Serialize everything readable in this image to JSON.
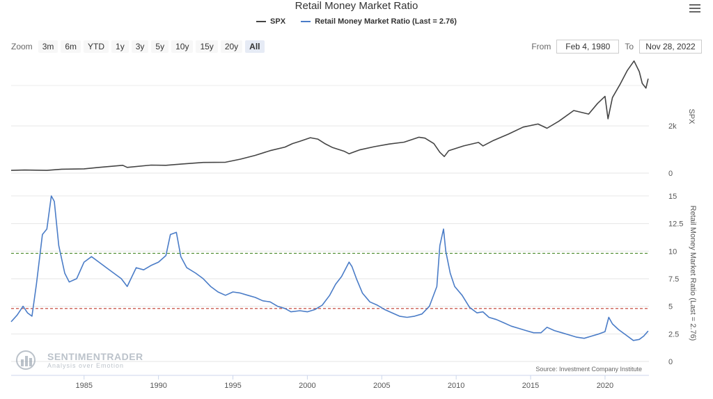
{
  "title": "Retail Money Market Ratio",
  "legend": {
    "spx_label": "SPX",
    "ratio_label": "Retail Money Market Ratio (Last = 2.76)",
    "spx_color": "#444444",
    "ratio_color": "#4a7cc7"
  },
  "zoom": {
    "label": "Zoom",
    "buttons": [
      "3m",
      "6m",
      "YTD",
      "1y",
      "3y",
      "5y",
      "10y",
      "15y",
      "20y",
      "All"
    ],
    "active": "All"
  },
  "range": {
    "from_label": "From",
    "from_value": "Feb 4, 1980",
    "to_label": "To",
    "to_value": "Nov 28, 2022"
  },
  "watermark": {
    "brand": "SENTIMENTRADER",
    "tagline": "Analysis over Emotion"
  },
  "source": "Source: Investment Company Institute",
  "icons": {
    "menu": "hamburger-menu-icon"
  },
  "chart_data": [
    {
      "type": "line",
      "series": [
        {
          "name": "SPX",
          "color": "#444444",
          "points": [
            [
              1980.1,
              115
            ],
            [
              1981.0,
              130
            ],
            [
              1982.5,
              115
            ],
            [
              1983.5,
              165
            ],
            [
              1985.0,
              180
            ],
            [
              1986.0,
              240
            ],
            [
              1987.6,
              330
            ],
            [
              1987.9,
              240
            ],
            [
              1989.5,
              340
            ],
            [
              1990.5,
              330
            ],
            [
              1991.5,
              380
            ],
            [
              1993.0,
              450
            ],
            [
              1994.5,
              460
            ],
            [
              1995.5,
              590
            ],
            [
              1996.5,
              750
            ],
            [
              1997.5,
              950
            ],
            [
              1998.5,
              1100
            ],
            [
              1999.0,
              1250
            ],
            [
              1999.5,
              1350
            ],
            [
              2000.2,
              1500
            ],
            [
              2000.7,
              1440
            ],
            [
              2001.2,
              1240
            ],
            [
              2001.7,
              1080
            ],
            [
              2002.5,
              920
            ],
            [
              2002.8,
              820
            ],
            [
              2003.5,
              980
            ],
            [
              2004.5,
              1120
            ],
            [
              2005.5,
              1230
            ],
            [
              2006.5,
              1310
            ],
            [
              2007.5,
              1520
            ],
            [
              2007.9,
              1480
            ],
            [
              2008.5,
              1250
            ],
            [
              2008.9,
              880
            ],
            [
              2009.2,
              700
            ],
            [
              2009.5,
              950
            ],
            [
              2010.5,
              1150
            ],
            [
              2011.5,
              1300
            ],
            [
              2011.8,
              1150
            ],
            [
              2012.5,
              1380
            ],
            [
              2013.5,
              1650
            ],
            [
              2014.5,
              1950
            ],
            [
              2015.5,
              2080
            ],
            [
              2016.1,
              1900
            ],
            [
              2016.9,
              2200
            ],
            [
              2017.9,
              2650
            ],
            [
              2018.9,
              2500
            ],
            [
              2019.5,
              2950
            ],
            [
              2020.0,
              3250
            ],
            [
              2020.2,
              2300
            ],
            [
              2020.5,
              3200
            ],
            [
              2021.0,
              3750
            ],
            [
              2021.5,
              4350
            ],
            [
              2021.95,
              4750
            ],
            [
              2022.3,
              4300
            ],
            [
              2022.5,
              3800
            ],
            [
              2022.75,
              3600
            ],
            [
              2022.9,
              4000
            ]
          ]
        }
      ],
      "yticks": [
        0,
        2000
      ],
      "ytick_labels": [
        "0",
        "2k"
      ],
      "ylabel": "SPX",
      "ylim": [
        0,
        4800
      ],
      "grid": true
    },
    {
      "type": "line",
      "series": [
        {
          "name": "Retail Money Market Ratio (Last = 2.76)",
          "color": "#4a7cc7",
          "points": [
            [
              1980.1,
              3.6
            ],
            [
              1980.5,
              4.2
            ],
            [
              1980.9,
              5.0
            ],
            [
              1981.2,
              4.4
            ],
            [
              1981.5,
              4.1
            ],
            [
              1981.8,
              7.0
            ],
            [
              1982.2,
              11.5
            ],
            [
              1982.5,
              12.0
            ],
            [
              1982.8,
              15.0
            ],
            [
              1983.0,
              14.5
            ],
            [
              1983.3,
              10.5
            ],
            [
              1983.7,
              8.0
            ],
            [
              1984.0,
              7.2
            ],
            [
              1984.5,
              7.5
            ],
            [
              1985.0,
              9.0
            ],
            [
              1985.5,
              9.5
            ],
            [
              1986.0,
              9.0
            ],
            [
              1986.5,
              8.5
            ],
            [
              1987.0,
              8.0
            ],
            [
              1987.5,
              7.5
            ],
            [
              1987.9,
              6.8
            ],
            [
              1988.5,
              8.5
            ],
            [
              1989.0,
              8.3
            ],
            [
              1989.5,
              8.7
            ],
            [
              1990.0,
              9.0
            ],
            [
              1990.5,
              9.6
            ],
            [
              1990.8,
              11.5
            ],
            [
              1991.2,
              11.7
            ],
            [
              1991.5,
              9.5
            ],
            [
              1991.9,
              8.5
            ],
            [
              1992.5,
              8.0
            ],
            [
              1993.0,
              7.5
            ],
            [
              1993.5,
              6.8
            ],
            [
              1994.0,
              6.3
            ],
            [
              1994.5,
              6.0
            ],
            [
              1995.0,
              6.3
            ],
            [
              1995.5,
              6.2
            ],
            [
              1996.0,
              6.0
            ],
            [
              1996.5,
              5.8
            ],
            [
              1997.0,
              5.5
            ],
            [
              1997.5,
              5.4
            ],
            [
              1998.0,
              5.0
            ],
            [
              1998.5,
              4.8
            ],
            [
              1998.9,
              4.5
            ],
            [
              1999.5,
              4.6
            ],
            [
              2000.0,
              4.5
            ],
            [
              2000.5,
              4.7
            ],
            [
              2001.0,
              5.1
            ],
            [
              2001.5,
              6.0
            ],
            [
              2001.9,
              7.0
            ],
            [
              2002.3,
              7.7
            ],
            [
              2002.8,
              9.0
            ],
            [
              2003.0,
              8.6
            ],
            [
              2003.3,
              7.5
            ],
            [
              2003.7,
              6.2
            ],
            [
              2004.2,
              5.4
            ],
            [
              2004.7,
              5.1
            ],
            [
              2005.2,
              4.7
            ],
            [
              2005.7,
              4.4
            ],
            [
              2006.2,
              4.1
            ],
            [
              2006.7,
              4.0
            ],
            [
              2007.2,
              4.1
            ],
            [
              2007.7,
              4.3
            ],
            [
              2008.2,
              5.0
            ],
            [
              2008.7,
              6.8
            ],
            [
              2008.9,
              10.5
            ],
            [
              2009.15,
              12.0
            ],
            [
              2009.3,
              10.0
            ],
            [
              2009.6,
              8.0
            ],
            [
              2009.9,
              6.8
            ],
            [
              2010.4,
              6.0
            ],
            [
              2010.9,
              4.9
            ],
            [
              2011.4,
              4.4
            ],
            [
              2011.8,
              4.5
            ],
            [
              2012.2,
              4.0
            ],
            [
              2012.7,
              3.8
            ],
            [
              2013.2,
              3.5
            ],
            [
              2013.7,
              3.2
            ],
            [
              2014.2,
              3.0
            ],
            [
              2014.7,
              2.8
            ],
            [
              2015.2,
              2.6
            ],
            [
              2015.7,
              2.6
            ],
            [
              2016.1,
              3.1
            ],
            [
              2016.6,
              2.8
            ],
            [
              2017.1,
              2.6
            ],
            [
              2017.6,
              2.4
            ],
            [
              2018.1,
              2.2
            ],
            [
              2018.6,
              2.1
            ],
            [
              2019.1,
              2.3
            ],
            [
              2019.6,
              2.5
            ],
            [
              2020.0,
              2.7
            ],
            [
              2020.25,
              4.0
            ],
            [
              2020.5,
              3.4
            ],
            [
              2020.9,
              2.9
            ],
            [
              2021.4,
              2.4
            ],
            [
              2021.9,
              1.9
            ],
            [
              2022.3,
              2.0
            ],
            [
              2022.6,
              2.3
            ],
            [
              2022.9,
              2.76
            ]
          ]
        }
      ],
      "yticks": [
        0,
        2.5,
        5,
        7.5,
        10,
        12.5,
        15
      ],
      "ytick_labels": [
        "0",
        "2.5",
        "5",
        "7.5",
        "10",
        "12.5",
        "15"
      ],
      "ylabel": "Retail Money Market Ratio (Last = 2.76)",
      "ylim": [
        0,
        16
      ],
      "grid": true,
      "reference_lines": [
        {
          "value": 9.8,
          "color": "#4a8a2a",
          "style": "dashed"
        },
        {
          "value": 4.8,
          "color": "#c0392b",
          "style": "dashed"
        }
      ]
    }
  ],
  "xaxis": {
    "ticks": [
      1985,
      1990,
      1995,
      2000,
      2005,
      2010,
      2015,
      2020
    ],
    "tick_labels": [
      "1985",
      "1990",
      "1995",
      "2000",
      "2005",
      "2010",
      "2015",
      "2020"
    ],
    "xlim": [
      1980.1,
      2022.95
    ]
  }
}
